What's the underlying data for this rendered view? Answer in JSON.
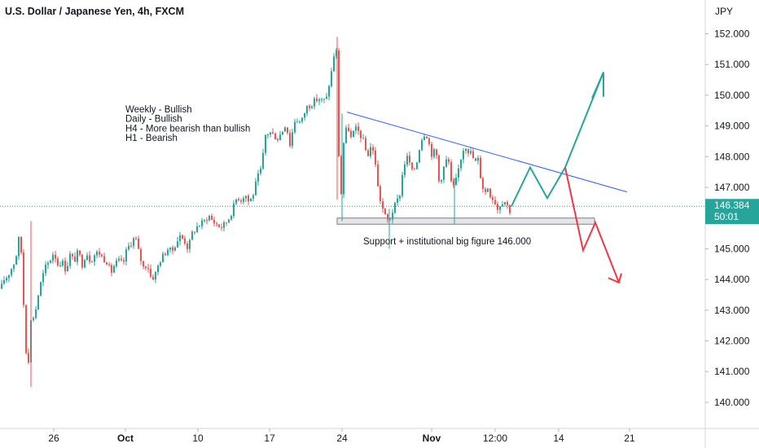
{
  "chart_data": {
    "type": "candlestick",
    "title": "U.S. Dollar / Japanese Yen, 4h, FXCM",
    "currency": "JPY",
    "y_ticks": [
      140.0,
      141.0,
      142.0,
      143.0,
      144.0,
      145.0,
      146.0,
      147.0,
      148.0,
      149.0,
      150.0,
      151.0,
      152.0
    ],
    "y_tick_labels": [
      "140.000",
      "141.000",
      "142.000",
      "143.000",
      "144.000",
      "145.000",
      "146.000",
      "147.000",
      "148.000",
      "149.000",
      "150.000",
      "151.000",
      "152.000"
    ],
    "ylim": [
      139.15,
      153.1
    ],
    "x_ticks": [
      "26",
      "Oct",
      "10",
      "17",
      "24",
      "Nov",
      "12:00",
      "14",
      "21"
    ],
    "bold_x_ticks": [
      "Oct",
      "Nov"
    ],
    "current_price": {
      "label": "146.384",
      "value": 146.384,
      "countdown": "50:01"
    },
    "annotations": {
      "bias": [
        "Weekly - Bullish",
        "Daily - Bullish",
        "H4 - More bearish than bullish",
        "H1 - Bearish"
      ],
      "support": "Support + institutional big figure 146.000"
    },
    "colors": {
      "up": "#26a69a",
      "down": "#ef5350",
      "trendline": "#2962ff",
      "bull_path": "#26a69a",
      "bear_path": "#f23645",
      "price_tag": "#26a69a"
    },
    "waypoints": [
      [
        0,
        143.7
      ],
      [
        4,
        144.0
      ],
      [
        8,
        144.1
      ],
      [
        12,
        144.3
      ],
      [
        15,
        144.5
      ],
      [
        18,
        144.6
      ],
      [
        20,
        145.0
      ],
      [
        22,
        145.3
      ],
      [
        24,
        145.6
      ],
      [
        26,
        144.2
      ],
      [
        28,
        143.2
      ],
      [
        30,
        142.6
      ],
      [
        32,
        140.8
      ],
      [
        34,
        141.4
      ],
      [
        36,
        142.0
      ],
      [
        38,
        143.3
      ],
      [
        40,
        142.8
      ],
      [
        42,
        142.9
      ],
      [
        46,
        143.5
      ],
      [
        50,
        144.0
      ],
      [
        55,
        144.4
      ],
      [
        60,
        144.6
      ],
      [
        65,
        144.9
      ],
      [
        70,
        144.5
      ],
      [
        75,
        144.6
      ],
      [
        80,
        144.3
      ],
      [
        85,
        144.8
      ],
      [
        90,
        144.6
      ],
      [
        95,
        144.9
      ],
      [
        100,
        144.5
      ],
      [
        105,
        144.9
      ],
      [
        110,
        144.6
      ],
      [
        115,
        144.8
      ],
      [
        120,
        144.9
      ],
      [
        125,
        144.7
      ],
      [
        130,
        144.6
      ],
      [
        135,
        144.2
      ],
      [
        140,
        144.5
      ],
      [
        145,
        144.6
      ],
      [
        150,
        144.5
      ],
      [
        155,
        145.0
      ],
      [
        160,
        145.2
      ],
      [
        165,
        145.4
      ],
      [
        170,
        144.8
      ],
      [
        175,
        144.4
      ],
      [
        180,
        144.5
      ],
      [
        185,
        144.0
      ],
      [
        190,
        144.2
      ],
      [
        195,
        144.6
      ],
      [
        200,
        144.8
      ],
      [
        205,
        145.0
      ],
      [
        210,
        144.9
      ],
      [
        215,
        145.2
      ],
      [
        220,
        145.4
      ],
      [
        225,
        145.3
      ],
      [
        230,
        145.0
      ],
      [
        235,
        145.5
      ],
      [
        240,
        145.7
      ],
      [
        245,
        145.8
      ],
      [
        250,
        145.9
      ],
      [
        255,
        146.1
      ],
      [
        260,
        145.9
      ],
      [
        265,
        145.8
      ],
      [
        270,
        145.7
      ],
      [
        275,
        145.8
      ],
      [
        280,
        146.0
      ],
      [
        285,
        146.3
      ],
      [
        290,
        146.7
      ],
      [
        295,
        146.6
      ],
      [
        300,
        146.8
      ],
      [
        305,
        146.5
      ],
      [
        310,
        146.8
      ],
      [
        315,
        147.3
      ],
      [
        320,
        147.6
      ],
      [
        325,
        148.7
      ],
      [
        330,
        148.8
      ],
      [
        335,
        148.7
      ],
      [
        340,
        148.6
      ],
      [
        345,
        148.8
      ],
      [
        350,
        149.1
      ],
      [
        355,
        148.4
      ],
      [
        358,
        148.8
      ],
      [
        362,
        149.3
      ],
      [
        366,
        149.1
      ],
      [
        370,
        149.2
      ],
      [
        375,
        149.6
      ],
      [
        380,
        149.7
      ],
      [
        385,
        149.8
      ],
      [
        390,
        149.9
      ],
      [
        395,
        149.8
      ],
      [
        400,
        149.9
      ],
      [
        404,
        150.5
      ],
      [
        408,
        151.0
      ],
      [
        410,
        151.6
      ],
      [
        412,
        151.4
      ],
      [
        414,
        148.5
      ],
      [
        416,
        147.6
      ],
      [
        418,
        146.8
      ],
      [
        420,
        148.2
      ],
      [
        422,
        148.7
      ],
      [
        426,
        149.0
      ],
      [
        430,
        148.6
      ],
      [
        435,
        148.9
      ],
      [
        440,
        148.8
      ],
      [
        445,
        148.5
      ],
      [
        450,
        148.0
      ],
      [
        455,
        148.4
      ],
      [
        460,
        147.8
      ],
      [
        463,
        147.0
      ],
      [
        466,
        146.6
      ],
      [
        470,
        146.2
      ],
      [
        474,
        145.9
      ],
      [
        478,
        146.0
      ],
      [
        482,
        146.3
      ],
      [
        486,
        146.5
      ],
      [
        490,
        146.8
      ],
      [
        494,
        147.6
      ],
      [
        497,
        147.9
      ],
      [
        500,
        148.0
      ],
      [
        505,
        147.5
      ],
      [
        510,
        147.7
      ],
      [
        514,
        148.3
      ],
      [
        518,
        148.7
      ],
      [
        522,
        148.8
      ],
      [
        526,
        148.4
      ],
      [
        530,
        148.0
      ],
      [
        534,
        148.3
      ],
      [
        538,
        147.2
      ],
      [
        542,
        147.4
      ],
      [
        546,
        147.9
      ],
      [
        550,
        147.8
      ],
      [
        554,
        146.9
      ],
      [
        558,
        147.1
      ],
      [
        562,
        147.6
      ],
      [
        566,
        148.1
      ],
      [
        570,
        148.4
      ],
      [
        574,
        148.2
      ],
      [
        578,
        148.1
      ],
      [
        582,
        147.8
      ],
      [
        586,
        147.9
      ],
      [
        590,
        147.2
      ],
      [
        594,
        146.8
      ],
      [
        598,
        147.0
      ],
      [
        602,
        146.7
      ],
      [
        606,
        146.6
      ],
      [
        610,
        146.3
      ],
      [
        614,
        146.5
      ],
      [
        618,
        146.6
      ],
      [
        622,
        146.4
      ],
      [
        626,
        146.2
      ]
    ],
    "support_zone": {
      "x_start": 414,
      "x_end": 730,
      "y_low": 145.8,
      "y_high": 146.0
    },
    "trendline": {
      "x1": 426,
      "y1": 149.45,
      "x2": 770,
      "y2": 146.85
    },
    "bull_projection": [
      [
        628,
        146.38
      ],
      [
        651,
        147.65
      ],
      [
        672,
        146.65
      ],
      [
        694,
        147.65
      ],
      [
        741,
        150.75
      ]
    ],
    "bear_projection": [
      [
        694,
        147.65
      ],
      [
        716,
        144.95
      ],
      [
        731,
        145.85
      ],
      [
        760,
        143.9
      ]
    ],
    "bull_arrowhead": [
      [
        727,
        149.9
      ],
      [
        741,
        150.75
      ],
      [
        741,
        149.95
      ]
    ],
    "bear_arrowhead": [
      [
        747,
        144.05
      ],
      [
        760,
        143.9
      ],
      [
        763,
        144.2
      ]
    ],
    "x_tick_positions": [
      66,
      154,
      243,
      331,
      420,
      530,
      608,
      686,
      773
    ]
  }
}
